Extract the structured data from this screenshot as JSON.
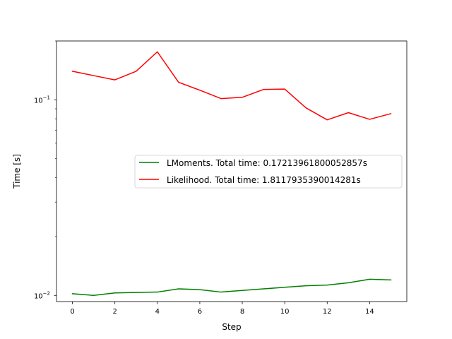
{
  "chart_data": {
    "type": "line",
    "xlabel": "Step",
    "ylabel": "Time [s]",
    "yscale": "log",
    "xlim": [
      -0.75,
      15.75
    ],
    "ylim": [
      0.0093,
      0.2
    ],
    "x_ticks": [
      0,
      2,
      4,
      6,
      8,
      10,
      12,
      14
    ],
    "x_tick_labels": [
      "0",
      "2",
      "4",
      "6",
      "8",
      "10",
      "12",
      "14"
    ],
    "y_major_ticks": [
      0.01,
      0.1
    ],
    "y_major_tick_labels": [
      "10",
      "10"
    ],
    "y_major_tick_exponents": [
      "−2",
      "−1"
    ],
    "y_minor_ticks": [
      0.02,
      0.03,
      0.04,
      0.05,
      0.06,
      0.07,
      0.08,
      0.09,
      0.2
    ],
    "x": [
      0,
      1,
      2,
      3,
      4,
      5,
      6,
      7,
      8,
      9,
      10,
      11,
      12,
      13,
      14,
      15
    ],
    "series": [
      {
        "name": "LMoments. Total time: 0.17213961800052857s",
        "color": "#008000",
        "values": [
          0.0102,
          0.01,
          0.0103,
          0.01035,
          0.0104,
          0.0108,
          0.0107,
          0.0104,
          0.0106,
          0.0108,
          0.011,
          0.0112,
          0.0113,
          0.0116,
          0.0121,
          0.012
        ]
      },
      {
        "name": "Likelihood. Total time: 1.8117935390014281s",
        "color": "#ff0000",
        "values": [
          0.14,
          0.133,
          0.1265,
          0.14,
          0.176,
          0.123,
          0.112,
          0.1015,
          0.103,
          0.113,
          0.1135,
          0.091,
          0.079,
          0.086,
          0.0795,
          0.085
        ]
      }
    ],
    "legend_position": "center-right",
    "grid": false
  }
}
